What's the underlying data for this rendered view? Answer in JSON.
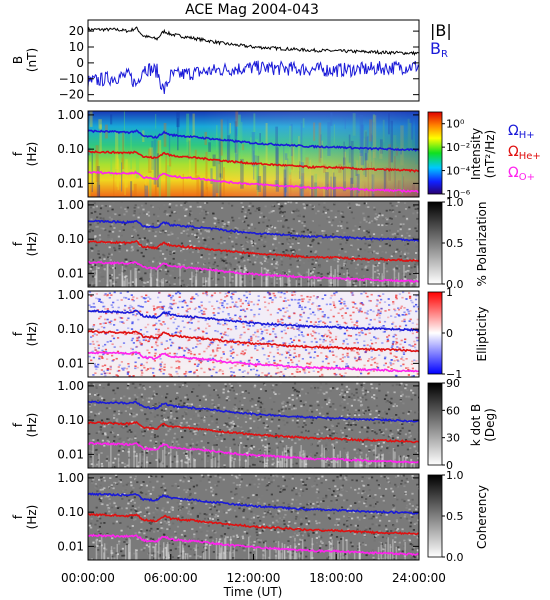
{
  "title": "ACE Mag 2004-043",
  "colors": {
    "black": "#000000",
    "blue": "#1a1ad8",
    "red": "#e01010",
    "magenta": "#ff22ee",
    "bg": "#ffffff"
  },
  "x_axis": {
    "label": "Time (UT)",
    "ticks": [
      "00:00:00",
      "06:00:00",
      "12:00:00",
      "18:00:00",
      "24:00:00"
    ],
    "range_hours": [
      0,
      24
    ]
  },
  "legends": {
    "b_total": "|B|",
    "b_r_main": "B",
    "b_r_sub": "R",
    "h_plus_main": "Ω",
    "h_plus_sub": "H+",
    "he_plus_main": "Ω",
    "he_plus_sub": "He+",
    "o_plus_main": "Ω",
    "o_plus_sub": "O+"
  },
  "panels": {
    "b": {
      "ylabel_1": "B",
      "ylabel_2": "(nT)",
      "yticks": [
        "20",
        "10",
        "0",
        "−10",
        "−20"
      ]
    },
    "intensity": {
      "ylabel_1": "f",
      "ylabel_2": "(Hz)",
      "yticks": [
        "1.00",
        "0.10",
        "0.01"
      ],
      "cbar_label_1": "Intensity",
      "cbar_label_2": "(nT²/Hz)",
      "cbar_ticks": [
        "10⁰",
        "10⁻²",
        "10⁻⁴",
        "10⁻⁶"
      ]
    },
    "polarization": {
      "ylabel_1": "f",
      "ylabel_2": "(Hz)",
      "yticks": [
        "1.00",
        "0.10",
        "0.01"
      ],
      "cbar_label_1": "% Polarization",
      "cbar_ticks": [
        "1.0",
        "0.5",
        "0.0"
      ]
    },
    "ellipticity": {
      "ylabel_1": "f",
      "ylabel_2": "(Hz)",
      "yticks": [
        "1.00",
        "0.10",
        "0.01"
      ],
      "cbar_label_1": "Ellipticity",
      "cbar_ticks": [
        "1",
        "0",
        "−1"
      ]
    },
    "kdotb": {
      "ylabel_1": "f",
      "ylabel_2": "(Hz)",
      "yticks": [
        "1.00",
        "0.10",
        "0.01"
      ],
      "cbar_label_1": "k dot B",
      "cbar_label_2": "(Deg)",
      "cbar_ticks": [
        "90",
        "60",
        "30",
        "0"
      ]
    },
    "coherency": {
      "ylabel_1": "f",
      "ylabel_2": "(Hz)",
      "yticks": [
        "1.00",
        "0.10",
        "0.01"
      ],
      "cbar_label_1": "Coherency",
      "cbar_ticks": [
        "1.0",
        "0.5",
        "0.0"
      ]
    }
  },
  "chart_data": {
    "type": "line",
    "title": "ACE Mag 2004-043",
    "xlabel": "Time (UT)",
    "x_hours": [
      0,
      2,
      3,
      3.5,
      4,
      5,
      5.5,
      6,
      8,
      10,
      12,
      14,
      16,
      18,
      20,
      22,
      24
    ],
    "field_series": [
      {
        "name": "|B|",
        "values": [
          21,
          21,
          20,
          22,
          17,
          15,
          20,
          18,
          15,
          12,
          10,
          9,
          8,
          7.5,
          7,
          6.5,
          6
        ]
      },
      {
        "name": "B_R",
        "values": [
          -12,
          -9,
          -8,
          -14,
          -3,
          -5,
          -18,
          -8,
          -6,
          -4,
          -3,
          -3.5,
          -4,
          -4.5,
          -4,
          -3,
          -2
        ]
      }
    ],
    "frequency_series": [
      {
        "name": "Ω_H+",
        "values_hz": [
          0.34,
          0.32,
          0.31,
          0.34,
          0.24,
          0.22,
          0.31,
          0.26,
          0.22,
          0.18,
          0.15,
          0.135,
          0.12,
          0.115,
          0.105,
          0.1,
          0.093
        ]
      },
      {
        "name": "Ω_He+",
        "values_hz": [
          0.085,
          0.08,
          0.078,
          0.085,
          0.06,
          0.055,
          0.078,
          0.065,
          0.055,
          0.045,
          0.038,
          0.034,
          0.03,
          0.029,
          0.026,
          0.025,
          0.023
        ]
      },
      {
        "name": "Ω_O+",
        "values_hz": [
          0.021,
          0.02,
          0.0195,
          0.021,
          0.015,
          0.0138,
          0.0195,
          0.016,
          0.0138,
          0.011,
          0.0095,
          0.0085,
          0.0075,
          0.0072,
          0.0066,
          0.0062,
          0.0058
        ]
      }
    ],
    "panels": [
      {
        "name": "B",
        "ylabel": "B (nT)",
        "ylim": [
          -24,
          27
        ]
      },
      {
        "name": "Intensity",
        "ylabel": "f (Hz)",
        "ylim": [
          0.004,
          1.3
        ],
        "log": true,
        "colorbar": "Intensity (nT²/Hz)",
        "clim_log10": [
          -6,
          1
        ]
      },
      {
        "name": "% Polarization",
        "ylabel": "f (Hz)",
        "ylim": [
          0.004,
          1.3
        ],
        "log": true,
        "colorbar": "% Polarization",
        "clim": [
          0,
          1
        ]
      },
      {
        "name": "Ellipticity",
        "ylabel": "f (Hz)",
        "ylim": [
          0.004,
          1.3
        ],
        "log": true,
        "colorbar": "Ellipticity",
        "clim": [
          -1,
          1
        ]
      },
      {
        "name": "k dot B",
        "ylabel": "f (Hz)",
        "ylim": [
          0.004,
          1.3
        ],
        "log": true,
        "colorbar": "k dot B (Deg)",
        "clim": [
          0,
          90
        ]
      },
      {
        "name": "Coherency",
        "ylabel": "f (Hz)",
        "ylim": [
          0.004,
          1.3
        ],
        "log": true,
        "colorbar": "Coherency",
        "clim": [
          0,
          1
        ]
      }
    ]
  }
}
